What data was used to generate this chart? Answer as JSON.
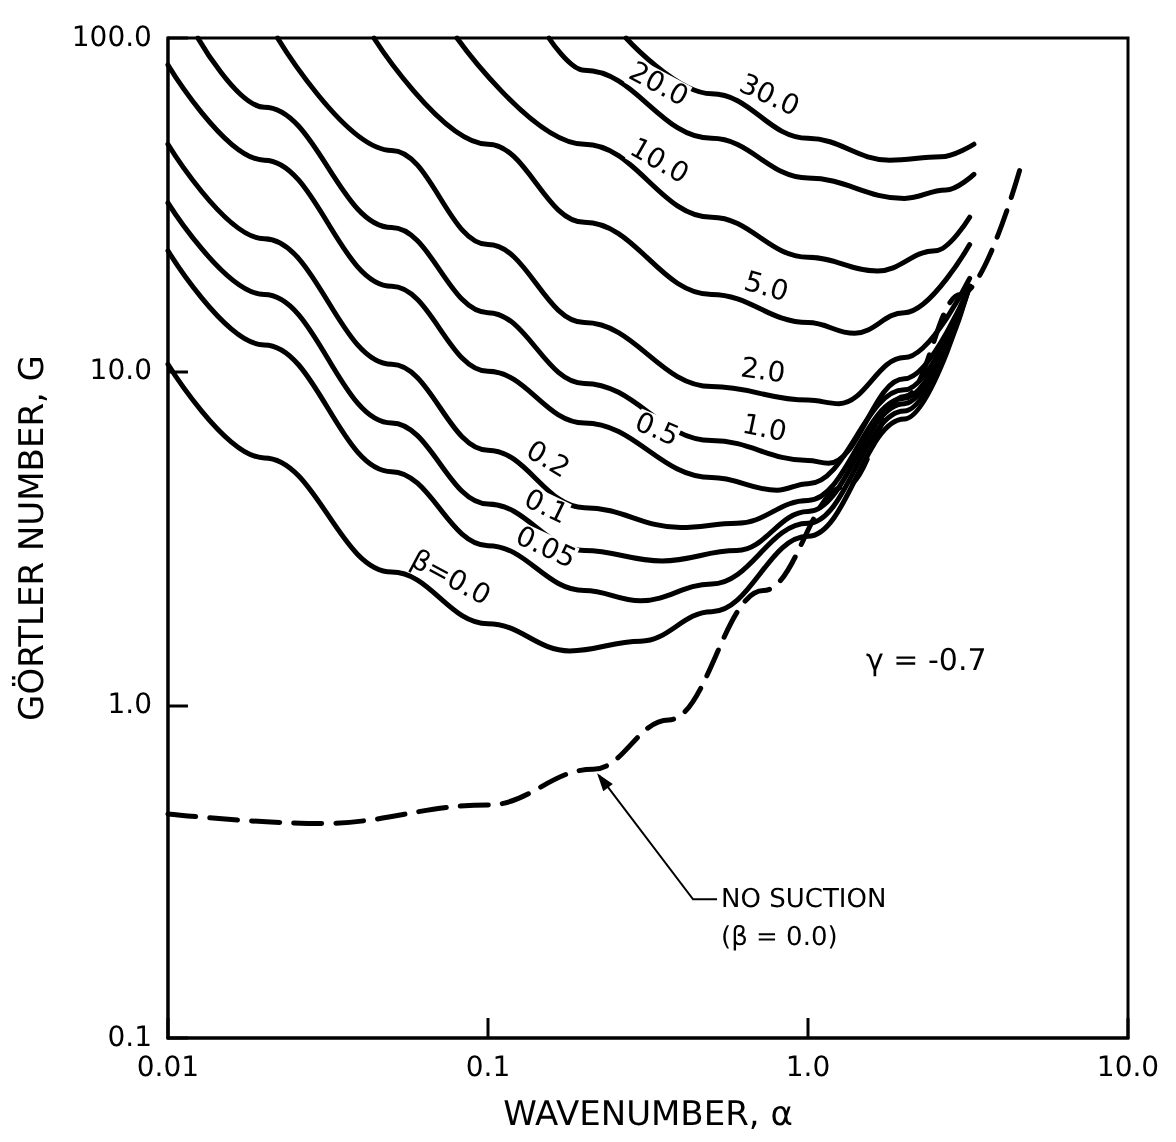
{
  "chart_data": {
    "type": "line",
    "xlabel": "WAVENUMBER, α",
    "ylabel": "GÖRTLER NUMBER, G",
    "log": "xy",
    "grid": false,
    "legend": false,
    "marker": "none",
    "xlim": [
      0.01,
      10
    ],
    "xticks": [
      {
        "value": 0.01,
        "label": "0.01"
      },
      {
        "value": 0.1,
        "label": "0.1"
      },
      {
        "value": 1,
        "label": "1.0"
      },
      {
        "value": 10,
        "label": "10.0"
      }
    ],
    "ylim": [
      0.1,
      100
    ],
    "yticks": [
      {
        "value": 0.1,
        "label": "0.1"
      },
      {
        "value": 1,
        "label": "1.0"
      },
      {
        "value": 10,
        "label": "10.0"
      },
      {
        "value": 100,
        "label": "100.0"
      }
    ],
    "annotations": [
      "γ = -0.7"
    ],
    "series": [
      {
        "name": "30.0",
        "color": "#000000",
        "line_style": "solid",
        "x": [
          0.27,
          0.5,
          1,
          1.8,
          2.6,
          3.3
        ],
        "values": [
          100,
          68,
          50,
          43,
          44,
          48
        ]
      },
      {
        "name": "20.0",
        "color": "#000000",
        "line_style": "solid",
        "x": [
          0.155,
          0.2,
          0.5,
          1,
          2,
          2.7,
          3.3
        ],
        "values": [
          100,
          80,
          50,
          38,
          33,
          35,
          39
        ]
      },
      {
        "name": "10.0",
        "color": "#000000",
        "line_style": "solid",
        "x": [
          0.08,
          0.2,
          0.5,
          1,
          1.65,
          2.5,
          3.2
        ],
        "values": [
          100,
          48,
          29,
          22,
          20,
          23,
          29
        ]
      },
      {
        "name": "5.0",
        "color": "#000000",
        "line_style": "solid",
        "x": [
          0.044,
          0.1,
          0.2,
          0.5,
          1,
          1.4,
          2,
          3.2
        ],
        "values": [
          100,
          48,
          28,
          17,
          14,
          13,
          15,
          24
        ]
      },
      {
        "name": "2.0",
        "color": "#000000",
        "line_style": "solid",
        "x": [
          0.022,
          0.05,
          0.1,
          0.2,
          0.5,
          1,
          1.25,
          2,
          3.2
        ],
        "values": [
          100,
          46,
          24,
          14,
          9,
          8.2,
          8,
          11,
          19
        ]
      },
      {
        "name": "1.0",
        "color": "#000000",
        "line_style": "solid",
        "x": [
          0.0124,
          0.02,
          0.05,
          0.1,
          0.2,
          0.5,
          1,
          1.16,
          2,
          3.2
        ],
        "values": [
          100,
          62,
          27,
          15,
          9.2,
          6.2,
          5.4,
          5.3,
          9.5,
          18
        ]
      },
      {
        "name": "0.5",
        "color": "#000000",
        "line_style": "solid",
        "x": [
          0.01,
          0.02,
          0.05,
          0.1,
          0.2,
          0.5,
          0.8,
          1,
          2,
          3.2
        ],
        "values": [
          83,
          43,
          18,
          10,
          7,
          4.8,
          4.4,
          4.6,
          8.8,
          18
        ]
      },
      {
        "name": "0.2",
        "color": "#000000",
        "line_style": "solid",
        "x": [
          0.01,
          0.02,
          0.05,
          0.1,
          0.2,
          0.4,
          0.6,
          1,
          2,
          3.2
        ],
        "values": [
          48,
          25,
          10.5,
          5.8,
          3.9,
          3.4,
          3.5,
          4.1,
          8.3,
          18
        ]
      },
      {
        "name": "0.1",
        "color": "#000000",
        "line_style": "solid",
        "x": [
          0.01,
          0.02,
          0.05,
          0.1,
          0.2,
          0.35,
          0.6,
          1,
          2,
          3.2
        ],
        "values": [
          32,
          17,
          7,
          4,
          2.9,
          2.7,
          2.9,
          3.8,
          8,
          18
        ]
      },
      {
        "name": "0.05",
        "color": "#000000",
        "line_style": "solid",
        "x": [
          0.01,
          0.02,
          0.05,
          0.1,
          0.2,
          0.3,
          0.5,
          1,
          2,
          3.2
        ],
        "values": [
          23,
          12,
          5,
          3,
          2.2,
          2.05,
          2.3,
          3.5,
          7.6,
          18
        ]
      },
      {
        "name": "β=0.0",
        "color": "#000000",
        "line_style": "solid",
        "x": [
          0.01,
          0.02,
          0.05,
          0.1,
          0.18,
          0.3,
          0.5,
          1,
          2,
          3.2
        ],
        "values": [
          10.5,
          5.5,
          2.5,
          1.75,
          1.45,
          1.55,
          1.9,
          3.2,
          7.2,
          18
        ]
      },
      {
        "name": "NO SUCTION (β = 0.0)",
        "color": "#000000",
        "line_style": "dashed",
        "x": [
          0.01,
          0.03,
          0.1,
          0.213,
          0.367,
          0.726,
          1.3,
          2,
          3,
          4.6
        ],
        "values": [
          0.47,
          0.44,
          0.5,
          0.64,
          0.9,
          2.2,
          4.5,
          8.4,
          17,
          40.5
        ]
      }
    ]
  }
}
